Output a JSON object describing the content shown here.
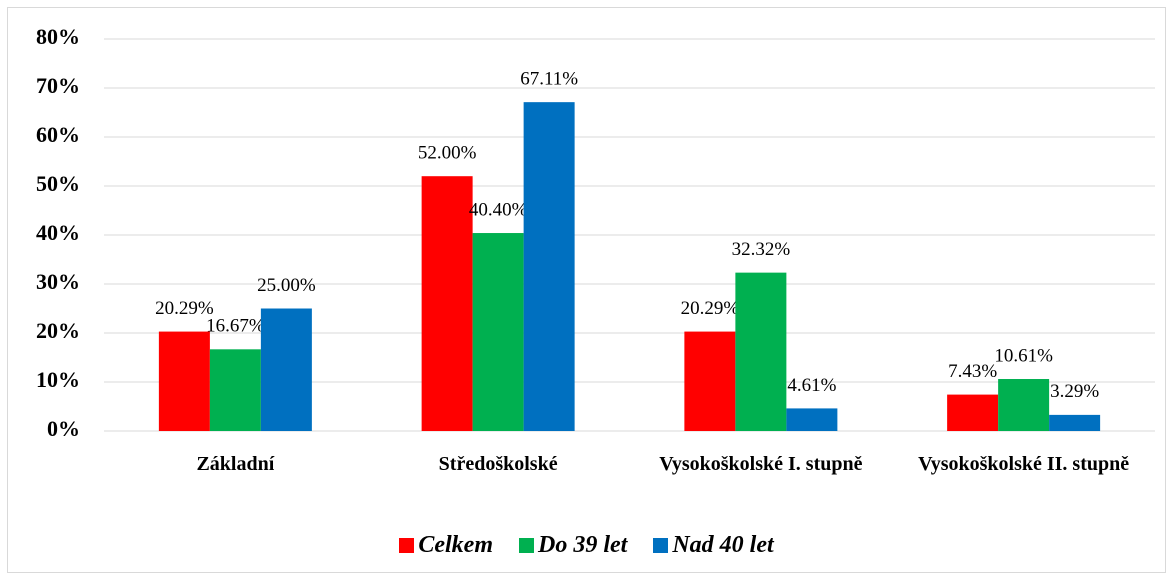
{
  "chart_data": {
    "type": "bar",
    "categories": [
      "Základní",
      "Středoškolské",
      "Vysokoškolské I. stupně",
      "Vysokoškolské II. stupně"
    ],
    "series": [
      {
        "name": "Celkem",
        "color": "#ff0000",
        "values": [
          20.29,
          52.0,
          20.29,
          7.43
        ],
        "value_labels": [
          "20.29%",
          "52.00%",
          "20.29%",
          "7.43%"
        ]
      },
      {
        "name": "Do 39 let",
        "color": "#00b050",
        "values": [
          16.67,
          40.4,
          32.32,
          10.61
        ],
        "value_labels": [
          "16.67%",
          "40.40%",
          "32.32%",
          "10.61%"
        ]
      },
      {
        "name": "Nad 40 let",
        "color": "#0070c0",
        "values": [
          25.0,
          67.11,
          4.61,
          3.29
        ],
        "value_labels": [
          "25.00%",
          "67.11%",
          "4.61%",
          "3.29%"
        ]
      }
    ],
    "ylim": [
      0,
      80
    ],
    "yticks": [
      {
        "value": 0,
        "label": "0%"
      },
      {
        "value": 10,
        "label": "10%"
      },
      {
        "value": 20,
        "label": "20%"
      },
      {
        "value": 30,
        "label": "30%"
      },
      {
        "value": 40,
        "label": "40%"
      },
      {
        "value": 50,
        "label": "50%"
      },
      {
        "value": 60,
        "label": "60%"
      },
      {
        "value": 70,
        "label": "70%"
      },
      {
        "value": 80,
        "label": "80%"
      }
    ],
    "grid": true,
    "legend": "bottom"
  }
}
